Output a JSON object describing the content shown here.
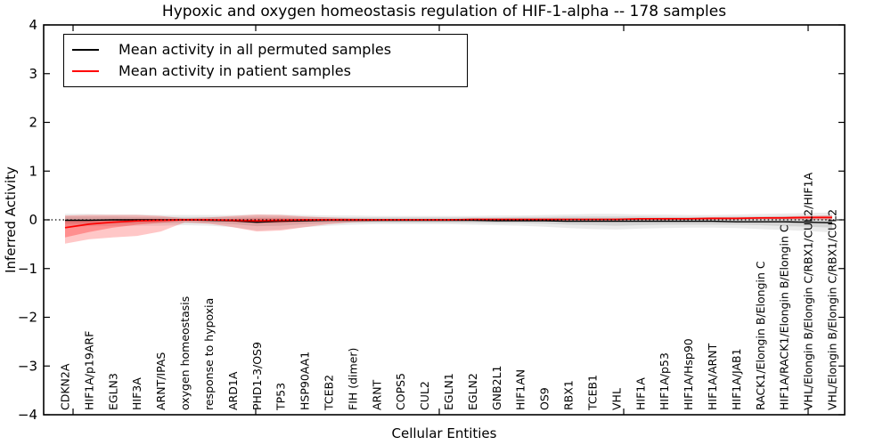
{
  "chart_data": {
    "type": "line",
    "title": "Hypoxic and oxygen homeostasis regulation of HIF-1-alpha -- 178 samples",
    "xlabel": "Cellular Entities",
    "ylabel": "Inferred Activity",
    "ylim": [
      -4,
      4
    ],
    "yticks": [
      4,
      3,
      2,
      1,
      0,
      -1,
      -2,
      -3,
      -4
    ],
    "ytick_labels": [
      "4",
      "3",
      "2",
      "1",
      "0",
      "−1",
      "−2",
      "−3",
      "−4"
    ],
    "grid": false,
    "legend_position": "upper left",
    "zero_reference_line": 0,
    "categories": [
      "CDKN2A",
      "HIF1A/p19ARF",
      "EGLN3",
      "HIF3A",
      "ARNT/IPAS",
      "oxygen homeostasis",
      "response to hypoxia",
      "ARD1A",
      "PHD1-3/OS9",
      "TP53",
      "HSP90AA1",
      "TCEB2",
      "FIH (dimer)",
      "ARNT",
      "COPS5",
      "CUL2",
      "EGLN1",
      "EGLN2",
      "GNB2L1",
      "HIF1AN",
      "OS9",
      "RBX1",
      "TCEB1",
      "VHL",
      "HIF1A",
      "HIF1A/p53",
      "HIF1A/Hsp90",
      "HIF1A/ARNT",
      "HIF1A/JAB1",
      "RACK1/Elongin B/Elongin C",
      "HIF1A/RACK1/Elongin B/Elongin C",
      "VHL/Elongin B/Elongin C/RBX1/CUL2/HIF1A",
      "VHL/Elongin B/Elongin C/RBX1/CUL2"
    ],
    "series": [
      {
        "name": "Mean activity in all permuted samples",
        "color": "#000000",
        "values": [
          -0.01,
          -0.01,
          0,
          0,
          0,
          0,
          -0.01,
          -0.02,
          -0.05,
          -0.03,
          -0.02,
          -0.01,
          -0.01,
          -0.01,
          -0.01,
          -0.01,
          -0.01,
          -0.01,
          -0.02,
          -0.02,
          -0.02,
          -0.03,
          -0.03,
          -0.03,
          -0.03,
          -0.03,
          -0.03,
          -0.03,
          -0.04,
          -0.04,
          -0.04,
          -0.05,
          -0.06
        ]
      },
      {
        "name": "Mean activity in patient samples",
        "color": "#ff0000",
        "values": [
          -0.16,
          -0.09,
          -0.05,
          -0.02,
          -0.01,
          0,
          0,
          -0.01,
          -0.02,
          -0.01,
          0,
          0,
          0,
          0,
          0,
          0,
          0,
          0.01,
          0.01,
          0.01,
          0.01,
          0.01,
          0.01,
          0.01,
          0.02,
          0.02,
          0.02,
          0.03,
          0.03,
          0.04,
          0.04,
          0.05,
          0.05
        ]
      }
    ],
    "bands": [
      {
        "name": "permuted-spread-outer",
        "color": "rgba(0,0,0,0.08)",
        "hi": [
          0.12,
          0.12,
          0.11,
          0.11,
          0.1,
          0.1,
          0.1,
          0.1,
          0.11,
          0.11,
          0.1,
          0.09,
          0.09,
          0.08,
          0.08,
          0.08,
          0.08,
          0.08,
          0.09,
          0.09,
          0.1,
          0.11,
          0.12,
          0.12,
          0.11,
          0.11,
          0.1,
          0.1,
          0.11,
          0.12,
          0.13,
          0.14,
          0.15
        ],
        "lo": [
          -0.14,
          -0.13,
          -0.13,
          -0.12,
          -0.12,
          -0.11,
          -0.12,
          -0.15,
          -0.22,
          -0.2,
          -0.15,
          -0.12,
          -0.1,
          -0.09,
          -0.09,
          -0.09,
          -0.09,
          -0.1,
          -0.11,
          -0.12,
          -0.14,
          -0.17,
          -0.19,
          -0.2,
          -0.18,
          -0.17,
          -0.16,
          -0.16,
          -0.17,
          -0.19,
          -0.21,
          -0.23,
          -0.26
        ]
      },
      {
        "name": "permuted-spread-inner",
        "color": "rgba(0,0,0,0.10)",
        "hi": [
          0.07,
          0.07,
          0.07,
          0.06,
          0.06,
          0.06,
          0.06,
          0.06,
          0.07,
          0.07,
          0.06,
          0.05,
          0.05,
          0.05,
          0.05,
          0.05,
          0.05,
          0.05,
          0.05,
          0.06,
          0.06,
          0.07,
          0.07,
          0.07,
          0.07,
          0.06,
          0.06,
          0.06,
          0.07,
          0.07,
          0.08,
          0.08,
          0.09
        ],
        "lo": [
          -0.08,
          -0.08,
          -0.08,
          -0.07,
          -0.07,
          -0.07,
          -0.07,
          -0.09,
          -0.13,
          -0.12,
          -0.09,
          -0.07,
          -0.06,
          -0.06,
          -0.06,
          -0.06,
          -0.06,
          -0.06,
          -0.07,
          -0.07,
          -0.08,
          -0.1,
          -0.11,
          -0.12,
          -0.11,
          -0.1,
          -0.1,
          -0.1,
          -0.1,
          -0.11,
          -0.13,
          -0.14,
          -0.16
        ]
      },
      {
        "name": "patient-spread-outer",
        "color": "rgba(255,0,0,0.22)",
        "hi": [
          0.09,
          0.1,
          0.1,
          0.1,
          0.08,
          0.03,
          0.05,
          0.08,
          0.11,
          0.1,
          0.07,
          0.05,
          0.03,
          0.02,
          0.02,
          0.02,
          0.02,
          0.02,
          0.02,
          0.02,
          0.02,
          0.02,
          0.02,
          0.03,
          0.03,
          0.04,
          0.04,
          0.05,
          0.05,
          0.06,
          0.07,
          0.08,
          0.09
        ],
        "lo": [
          -0.49,
          -0.4,
          -0.36,
          -0.33,
          -0.24,
          -0.05,
          -0.08,
          -0.15,
          -0.24,
          -0.22,
          -0.15,
          -0.09,
          -0.05,
          -0.03,
          -0.02,
          -0.02,
          -0.02,
          -0.02,
          -0.01,
          -0.01,
          -0.01,
          -0.01,
          -0.01,
          -0.01,
          -0.01,
          -0.01,
          0,
          0,
          0,
          0.01,
          0.01,
          0.01,
          0
        ]
      },
      {
        "name": "patient-spread-inner",
        "color": "rgba(255,0,0,0.28)",
        "hi": [
          -0.02,
          0,
          0.01,
          0.02,
          0.02,
          0.01,
          0.01,
          0.02,
          0.03,
          0.03,
          0.02,
          0.01,
          0.01,
          0.01,
          0.01,
          0.01,
          0.01,
          0.01,
          0.01,
          0.02,
          0.02,
          0.02,
          0.02,
          0.02,
          0.03,
          0.03,
          0.03,
          0.04,
          0.04,
          0.05,
          0.05,
          0.06,
          0.06
        ],
        "lo": [
          -0.36,
          -0.25,
          -0.16,
          -0.1,
          -0.06,
          -0.02,
          -0.02,
          -0.04,
          -0.07,
          -0.06,
          -0.04,
          -0.02,
          -0.01,
          -0.01,
          -0.01,
          -0.01,
          -0.01,
          0,
          0,
          0,
          0,
          0,
          0,
          0,
          0.01,
          0.01,
          0.01,
          0.01,
          0.02,
          0.02,
          0.02,
          0.03,
          0.03
        ]
      }
    ]
  }
}
